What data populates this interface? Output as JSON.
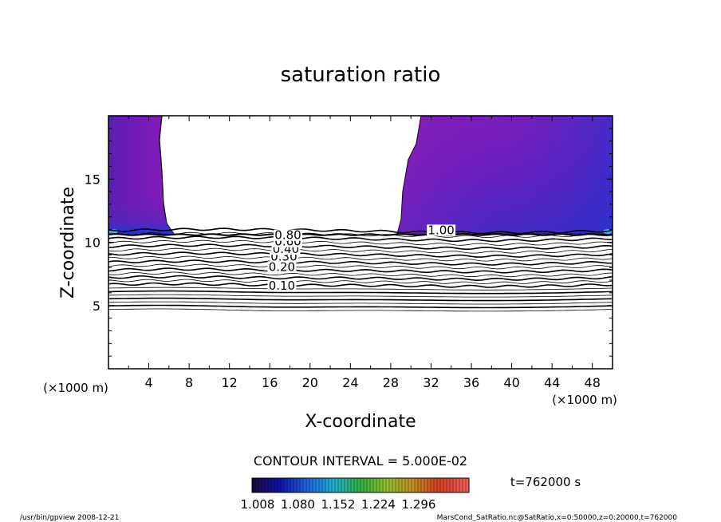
{
  "chart_data": {
    "type": "contour",
    "title": "saturation ratio",
    "xlabel": "X-coordinate",
    "ylabel": "Z-coordinate",
    "x_unit_left": "(×1000 m)",
    "x_unit_right": "(×1000 m)",
    "xlim": [
      0,
      50
    ],
    "ylim": [
      0,
      20
    ],
    "x_ticks": [
      4,
      8,
      12,
      16,
      20,
      24,
      28,
      32,
      36,
      40,
      44,
      48
    ],
    "y_ticks": [
      5,
      10,
      15
    ],
    "contour_interval_text": "CONTOUR INTERVAL = 5.000E-02",
    "time_label": "t=762000 s",
    "contour_labels": [
      {
        "text": "0.10",
        "x": 17.2,
        "z": 6.3
      },
      {
        "text": "0.20",
        "x": 17.2,
        "z": 7.8
      },
      {
        "text": "0.30",
        "x": 17.4,
        "z": 8.6
      },
      {
        "text": "0.40",
        "x": 17.6,
        "z": 9.2
      },
      {
        "text": "0.60",
        "x": 17.8,
        "z": 9.8
      },
      {
        "text": "0.80",
        "x": 17.8,
        "z": 10.3
      },
      {
        "text": "1.00",
        "x": 33.0,
        "z": 10.7
      }
    ],
    "colorbar": {
      "tick_labels": [
        "1.008",
        "1.080",
        "1.152",
        "1.224",
        "1.296"
      ],
      "min": 1.008,
      "max": 1.296
    },
    "shaded_regions": [
      {
        "name": "left supersaturated region",
        "x_range": [
          0,
          6
        ],
        "z_range": [
          10.6,
          20
        ]
      },
      {
        "name": "right supersaturated region",
        "x_range": [
          29,
          50
        ],
        "z_range": [
          10.6,
          20
        ]
      }
    ]
  },
  "footer": {
    "left": "/usr/bin/gpview   2008-12-21",
    "right": "MarsCond_SatRatio.nc@SatRatio,x=0:50000,z=0:20000,t=762000"
  }
}
